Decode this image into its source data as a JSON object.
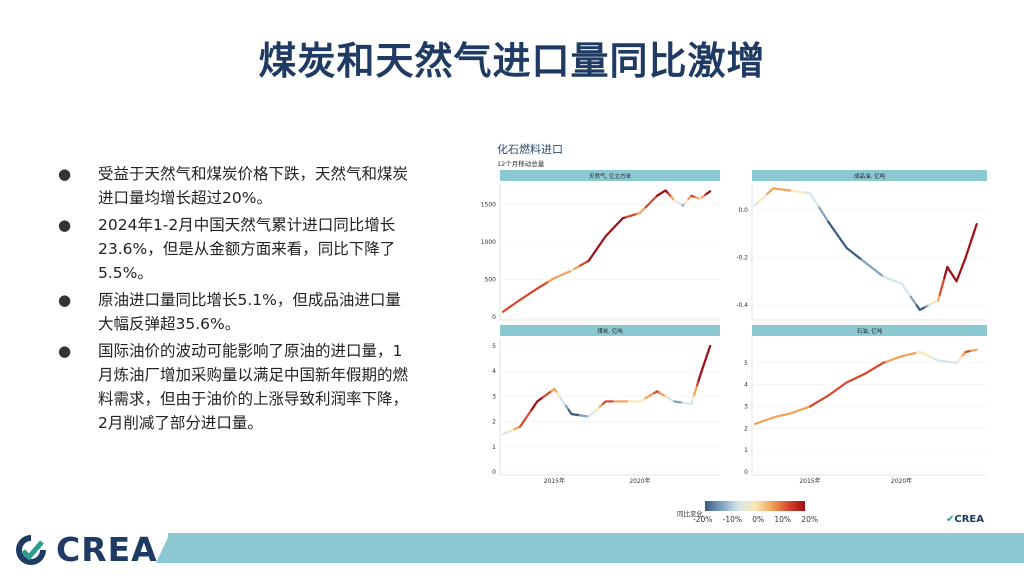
{
  "title": "煤炭和天然气进口量同比激增",
  "bullets": [
    "受益于天然气和煤炭价格下跌，天然气和煤炭进口量均增长超过20%。",
    "2024年1-2月中国天然气累计进口同比增长23.6%，但是从金额方面来看，同比下降了5.5%。",
    "原油进口量同比增长5.1%，但成品油进口量大幅反弹超35.6%。",
    "国际油价的波动可能影响了原油的进口量，1月炼油厂增加采购量以满足中国新年假期的燃料需求，但由于油价的上涨导致利润率下降，2月削减了部分进口量。"
  ],
  "chart": {
    "title": "化石燃料进口",
    "subtitle": "12个月移动总量",
    "colorbar_label": "同比变化",
    "colorbar_ticks": [
      "-20%",
      "-10%",
      "0%",
      "10%",
      "20%"
    ],
    "colorscale": [
      "#3b5a86",
      "#7fa3c0",
      "#d4e6ec",
      "#fbe7b6",
      "#f0a35a",
      "#d7482f",
      "#9e0f16"
    ],
    "brand": "CREA"
  },
  "logo": {
    "text": "CREA"
  },
  "colors": {
    "title": "#1f3b63",
    "panel_header": "#8cc8d2",
    "footer": "#8cc8d2"
  },
  "chart_data": [
    {
      "type": "line",
      "title": "化石燃料进口",
      "panel": "天然气, 亿立方米",
      "ylim": [
        0,
        1750
      ],
      "yticks": [
        0,
        500,
        1000,
        1500
      ],
      "xticks": [],
      "x": [
        2012,
        2013,
        2014,
        2015,
        2016,
        2017,
        2018,
        2019,
        2020,
        2021,
        2021.5,
        2022,
        2022.5,
        2023,
        2023.5,
        2024.1
      ],
      "y": [
        70,
        230,
        380,
        520,
        620,
        750,
        1080,
        1320,
        1390,
        1620,
        1690,
        1560,
        1490,
        1620,
        1580,
        1680
      ],
      "yoy_pct": [
        15,
        14,
        12,
        8,
        3,
        18,
        25,
        18,
        6,
        18,
        22,
        0,
        -12,
        14,
        2,
        24
      ]
    },
    {
      "type": "line",
      "title": "化石燃料进口",
      "panel": "成品油, 亿吨",
      "ylim": [
        -0.45,
        0.1
      ],
      "yticks": [
        0.0,
        -0.2,
        -0.4
      ],
      "xticks": [],
      "x": [
        2012,
        2013,
        2014,
        2015,
        2016,
        2017,
        2018,
        2019,
        2020,
        2021,
        2022,
        2022.5,
        2023,
        2023.5,
        2024.1
      ],
      "y": [
        0.02,
        0.09,
        0.08,
        0.07,
        -0.05,
        -0.16,
        -0.22,
        -0.28,
        -0.31,
        -0.42,
        -0.38,
        -0.24,
        -0.3,
        -0.2,
        -0.06
      ],
      "yoy_pct": [
        -5,
        8,
        3,
        -6,
        -18,
        -20,
        -15,
        -10,
        -4,
        -22,
        8,
        22,
        18,
        26,
        30
      ]
    },
    {
      "type": "line",
      "title": "化石燃料进口",
      "panel": "煤炭, 亿吨",
      "ylim": [
        0,
        5.2
      ],
      "yticks": [
        0,
        1,
        2,
        3,
        4,
        5
      ],
      "xticks": [
        "2015年",
        "2020年"
      ],
      "x": [
        2012,
        2013,
        2014,
        2015,
        2016,
        2017,
        2018,
        2019,
        2020,
        2021,
        2022,
        2023,
        2023.5,
        2024.1
      ],
      "y": [
        1.5,
        1.8,
        2.8,
        3.3,
        2.3,
        2.2,
        2.8,
        2.8,
        2.8,
        3.2,
        2.8,
        2.7,
        3.8,
        5.0
      ],
      "yoy_pct": [
        -8,
        10,
        22,
        5,
        -22,
        -8,
        14,
        4,
        1,
        12,
        -14,
        -6,
        24,
        30
      ]
    },
    {
      "type": "line",
      "title": "化石燃料进口",
      "panel": "石油, 亿吨",
      "ylim": [
        0,
        6
      ],
      "yticks": [
        0,
        1,
        2,
        3,
        4,
        5
      ],
      "xticks": [
        "2015年",
        "2020年"
      ],
      "x": [
        2012,
        2013,
        2014,
        2015,
        2016,
        2017,
        2018,
        2019,
        2020,
        2021,
        2022,
        2023,
        2023.5,
        2024.1
      ],
      "y": [
        2.2,
        2.5,
        2.7,
        3.0,
        3.5,
        4.1,
        4.5,
        5.0,
        5.3,
        5.5,
        5.1,
        5.0,
        5.5,
        5.6
      ],
      "yoy_pct": [
        6,
        6,
        8,
        10,
        14,
        12,
        10,
        10,
        8,
        2,
        -8,
        -6,
        12,
        6
      ]
    }
  ]
}
